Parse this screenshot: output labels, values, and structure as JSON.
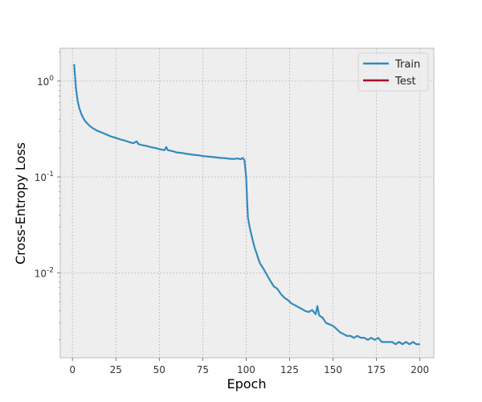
{
  "chart_data": {
    "type": "line",
    "title": "",
    "xlabel": "Epoch",
    "ylabel": "Cross-Entropy Loss",
    "xlim": [
      -7,
      208
    ],
    "ylim": [
      0.0013,
      2.2
    ],
    "yscale": "log",
    "grid": true,
    "legend_position": "top-right",
    "x_ticks": [
      0,
      25,
      50,
      75,
      100,
      125,
      150,
      175,
      200
    ],
    "x_tick_labels": [
      "0",
      "25",
      "50",
      "75",
      "100",
      "125",
      "150",
      "175",
      "200"
    ],
    "y_ticks": [
      1,
      0.1,
      0.01
    ],
    "y_tick_labels": [
      {
        "base": "10",
        "exp": "0"
      },
      {
        "base": "10",
        "exp": "-1"
      },
      {
        "base": "10",
        "exp": "-2"
      }
    ],
    "series": [
      {
        "name": "Train",
        "color": "#348abd",
        "points": [
          [
            1,
            1.5
          ],
          [
            2,
            0.85
          ],
          [
            3,
            0.62
          ],
          [
            4,
            0.52
          ],
          [
            5,
            0.46
          ],
          [
            6,
            0.42
          ],
          [
            7,
            0.39
          ],
          [
            8,
            0.37
          ],
          [
            9,
            0.355
          ],
          [
            10,
            0.34
          ],
          [
            12,
            0.32
          ],
          [
            14,
            0.305
          ],
          [
            16,
            0.295
          ],
          [
            18,
            0.285
          ],
          [
            20,
            0.275
          ],
          [
            22,
            0.265
          ],
          [
            25,
            0.255
          ],
          [
            28,
            0.245
          ],
          [
            30,
            0.24
          ],
          [
            33,
            0.23
          ],
          [
            35,
            0.225
          ],
          [
            37,
            0.235
          ],
          [
            38,
            0.22
          ],
          [
            40,
            0.215
          ],
          [
            43,
            0.21
          ],
          [
            45,
            0.205
          ],
          [
            48,
            0.2
          ],
          [
            50,
            0.195
          ],
          [
            53,
            0.19
          ],
          [
            54,
            0.205
          ],
          [
            55,
            0.19
          ],
          [
            58,
            0.185
          ],
          [
            60,
            0.18
          ],
          [
            63,
            0.178
          ],
          [
            65,
            0.175
          ],
          [
            68,
            0.172
          ],
          [
            70,
            0.17
          ],
          [
            73,
            0.168
          ],
          [
            75,
            0.165
          ],
          [
            78,
            0.163
          ],
          [
            80,
            0.162
          ],
          [
            83,
            0.16
          ],
          [
            85,
            0.158
          ],
          [
            88,
            0.157
          ],
          [
            90,
            0.155
          ],
          [
            93,
            0.154
          ],
          [
            95,
            0.156
          ],
          [
            97,
            0.153
          ],
          [
            98,
            0.158
          ],
          [
            99,
            0.15
          ],
          [
            100,
            0.1
          ],
          [
            100.5,
            0.06
          ],
          [
            101,
            0.038
          ],
          [
            102,
            0.03
          ],
          [
            103,
            0.025
          ],
          [
            104,
            0.021
          ],
          [
            105,
            0.018
          ],
          [
            106,
            0.016
          ],
          [
            107,
            0.014
          ],
          [
            108,
            0.0125
          ],
          [
            110,
            0.011
          ],
          [
            112,
            0.0095
          ],
          [
            114,
            0.0082
          ],
          [
            116,
            0.0072
          ],
          [
            118,
            0.0068
          ],
          [
            120,
            0.006
          ],
          [
            122,
            0.0055
          ],
          [
            124,
            0.0052
          ],
          [
            126,
            0.0048
          ],
          [
            128,
            0.0046
          ],
          [
            130,
            0.0044
          ],
          [
            132,
            0.0042
          ],
          [
            134,
            0.004
          ],
          [
            136,
            0.0039
          ],
          [
            138,
            0.0041
          ],
          [
            140,
            0.0037
          ],
          [
            141,
            0.0045
          ],
          [
            142,
            0.0036
          ],
          [
            144,
            0.0034
          ],
          [
            146,
            0.003
          ],
          [
            148,
            0.0029
          ],
          [
            150,
            0.0028
          ],
          [
            152,
            0.0026
          ],
          [
            154,
            0.0024
          ],
          [
            156,
            0.0023
          ],
          [
            158,
            0.0022
          ],
          [
            160,
            0.0022
          ],
          [
            162,
            0.0021
          ],
          [
            164,
            0.0022
          ],
          [
            166,
            0.0021
          ],
          [
            168,
            0.0021
          ],
          [
            170,
            0.002
          ],
          [
            172,
            0.0021
          ],
          [
            174,
            0.002
          ],
          [
            176,
            0.0021
          ],
          [
            178,
            0.0019
          ],
          [
            180,
            0.0019
          ],
          [
            182,
            0.0019
          ],
          [
            184,
            0.0019
          ],
          [
            186,
            0.0018
          ],
          [
            188,
            0.0019
          ],
          [
            190,
            0.0018
          ],
          [
            192,
            0.0019
          ],
          [
            194,
            0.0018
          ],
          [
            196,
            0.0019
          ],
          [
            198,
            0.0018
          ],
          [
            200,
            0.0018
          ]
        ]
      },
      {
        "name": "Test",
        "color": "#a60628",
        "points": []
      }
    ]
  }
}
